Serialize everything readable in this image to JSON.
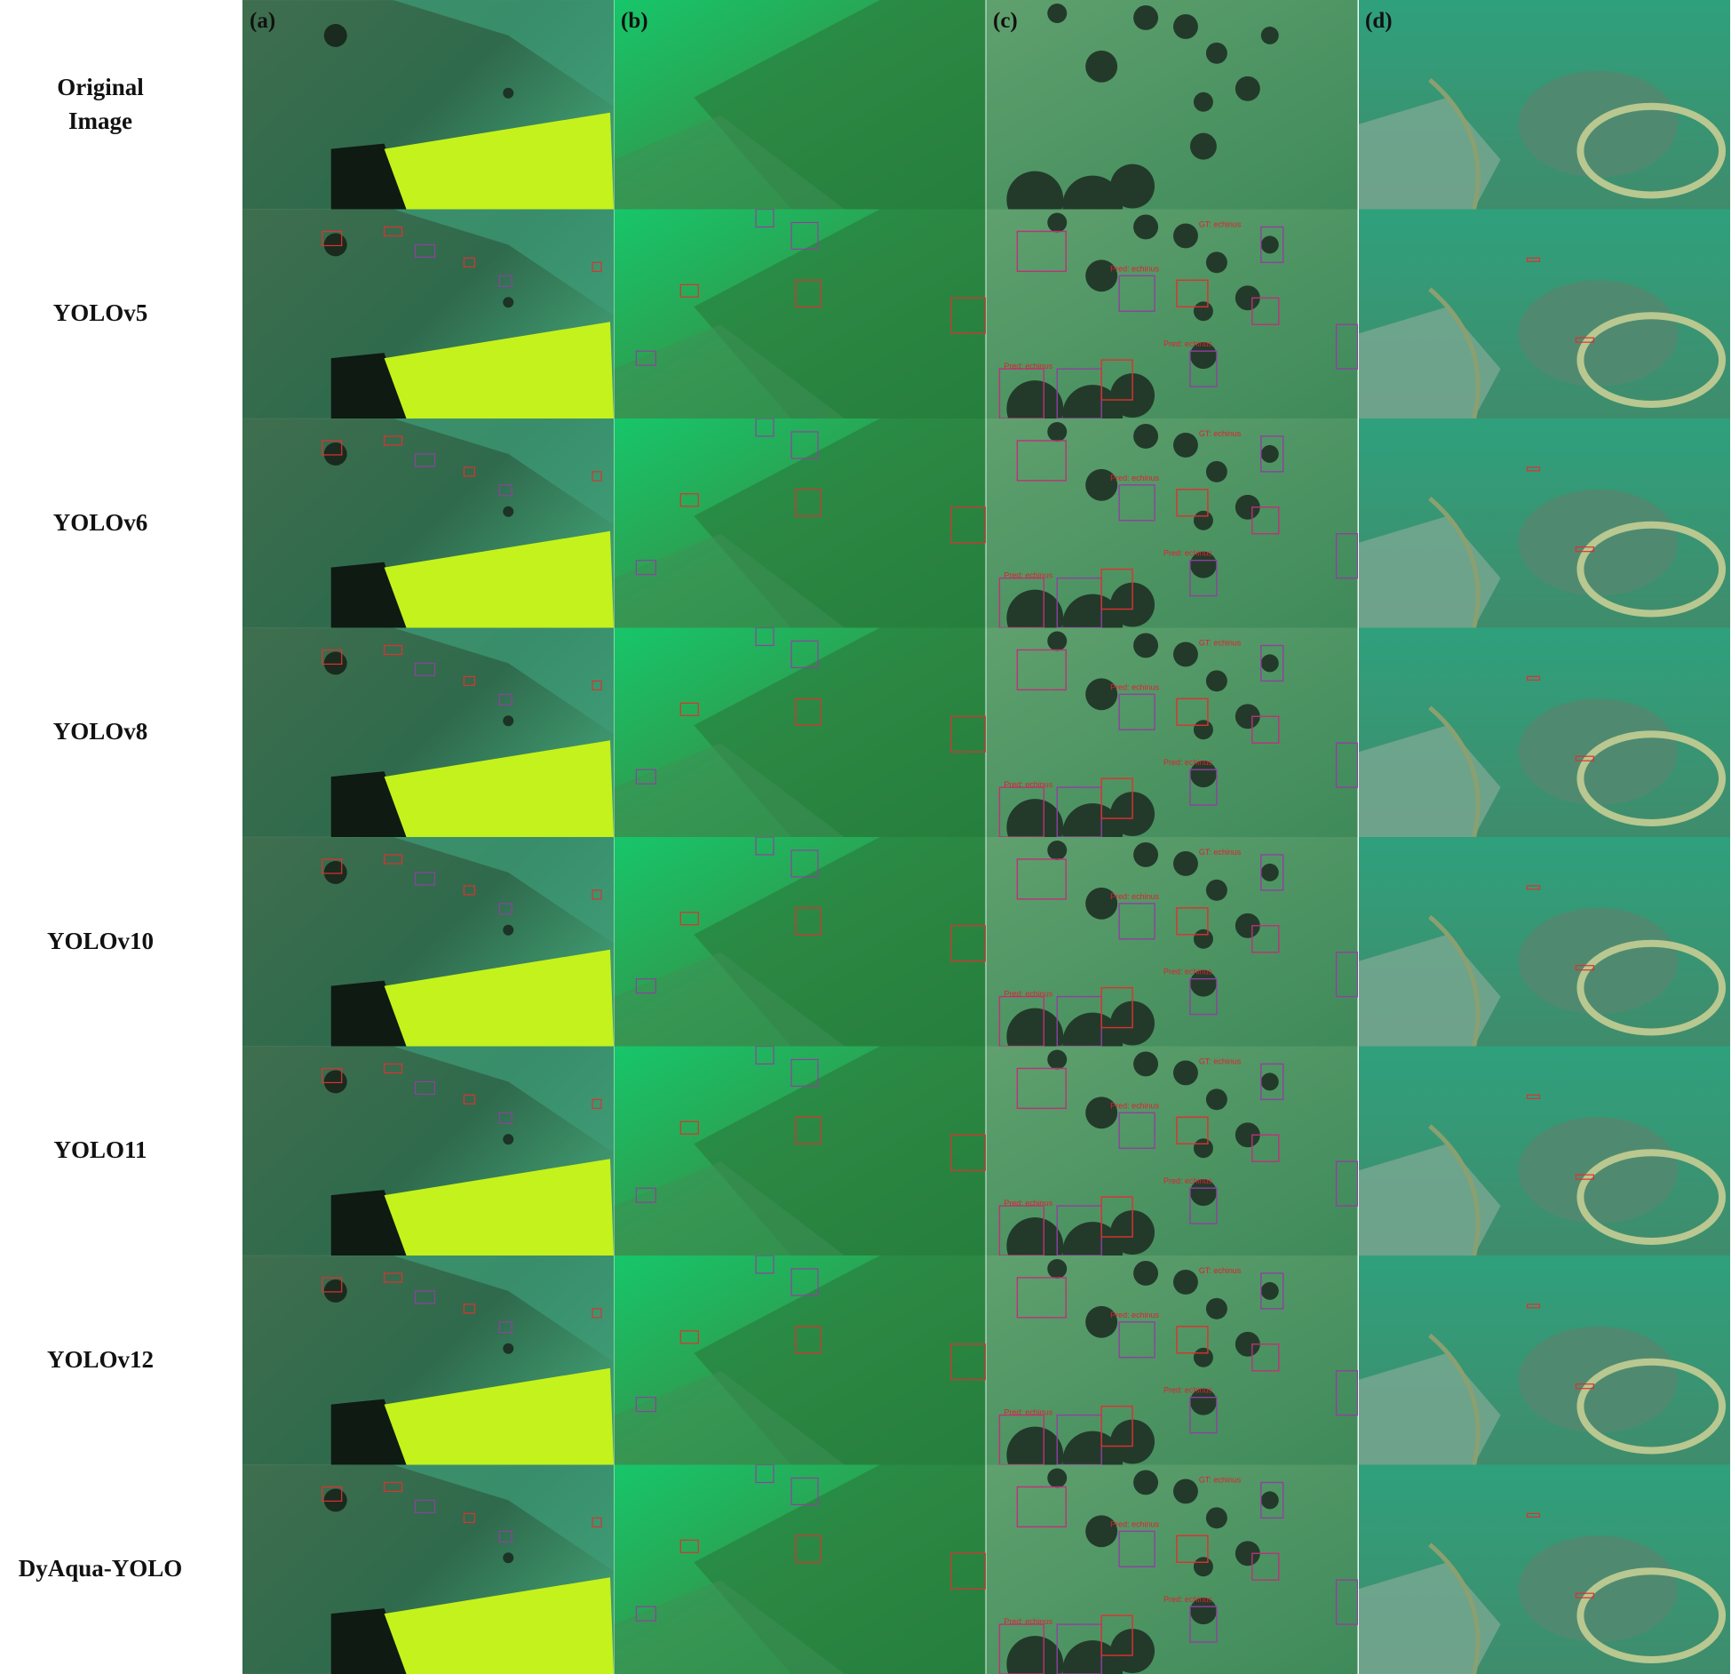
{
  "columns": [
    "(a)",
    "(b)",
    "(c)",
    "(d)"
  ],
  "rows": [
    "Original Image",
    "YOLOv5",
    "YOLOv6",
    "YOLOv8",
    "YOLOv10",
    "YOLO11",
    "YOLOv12",
    "DyAqua-YOLO"
  ]
}
